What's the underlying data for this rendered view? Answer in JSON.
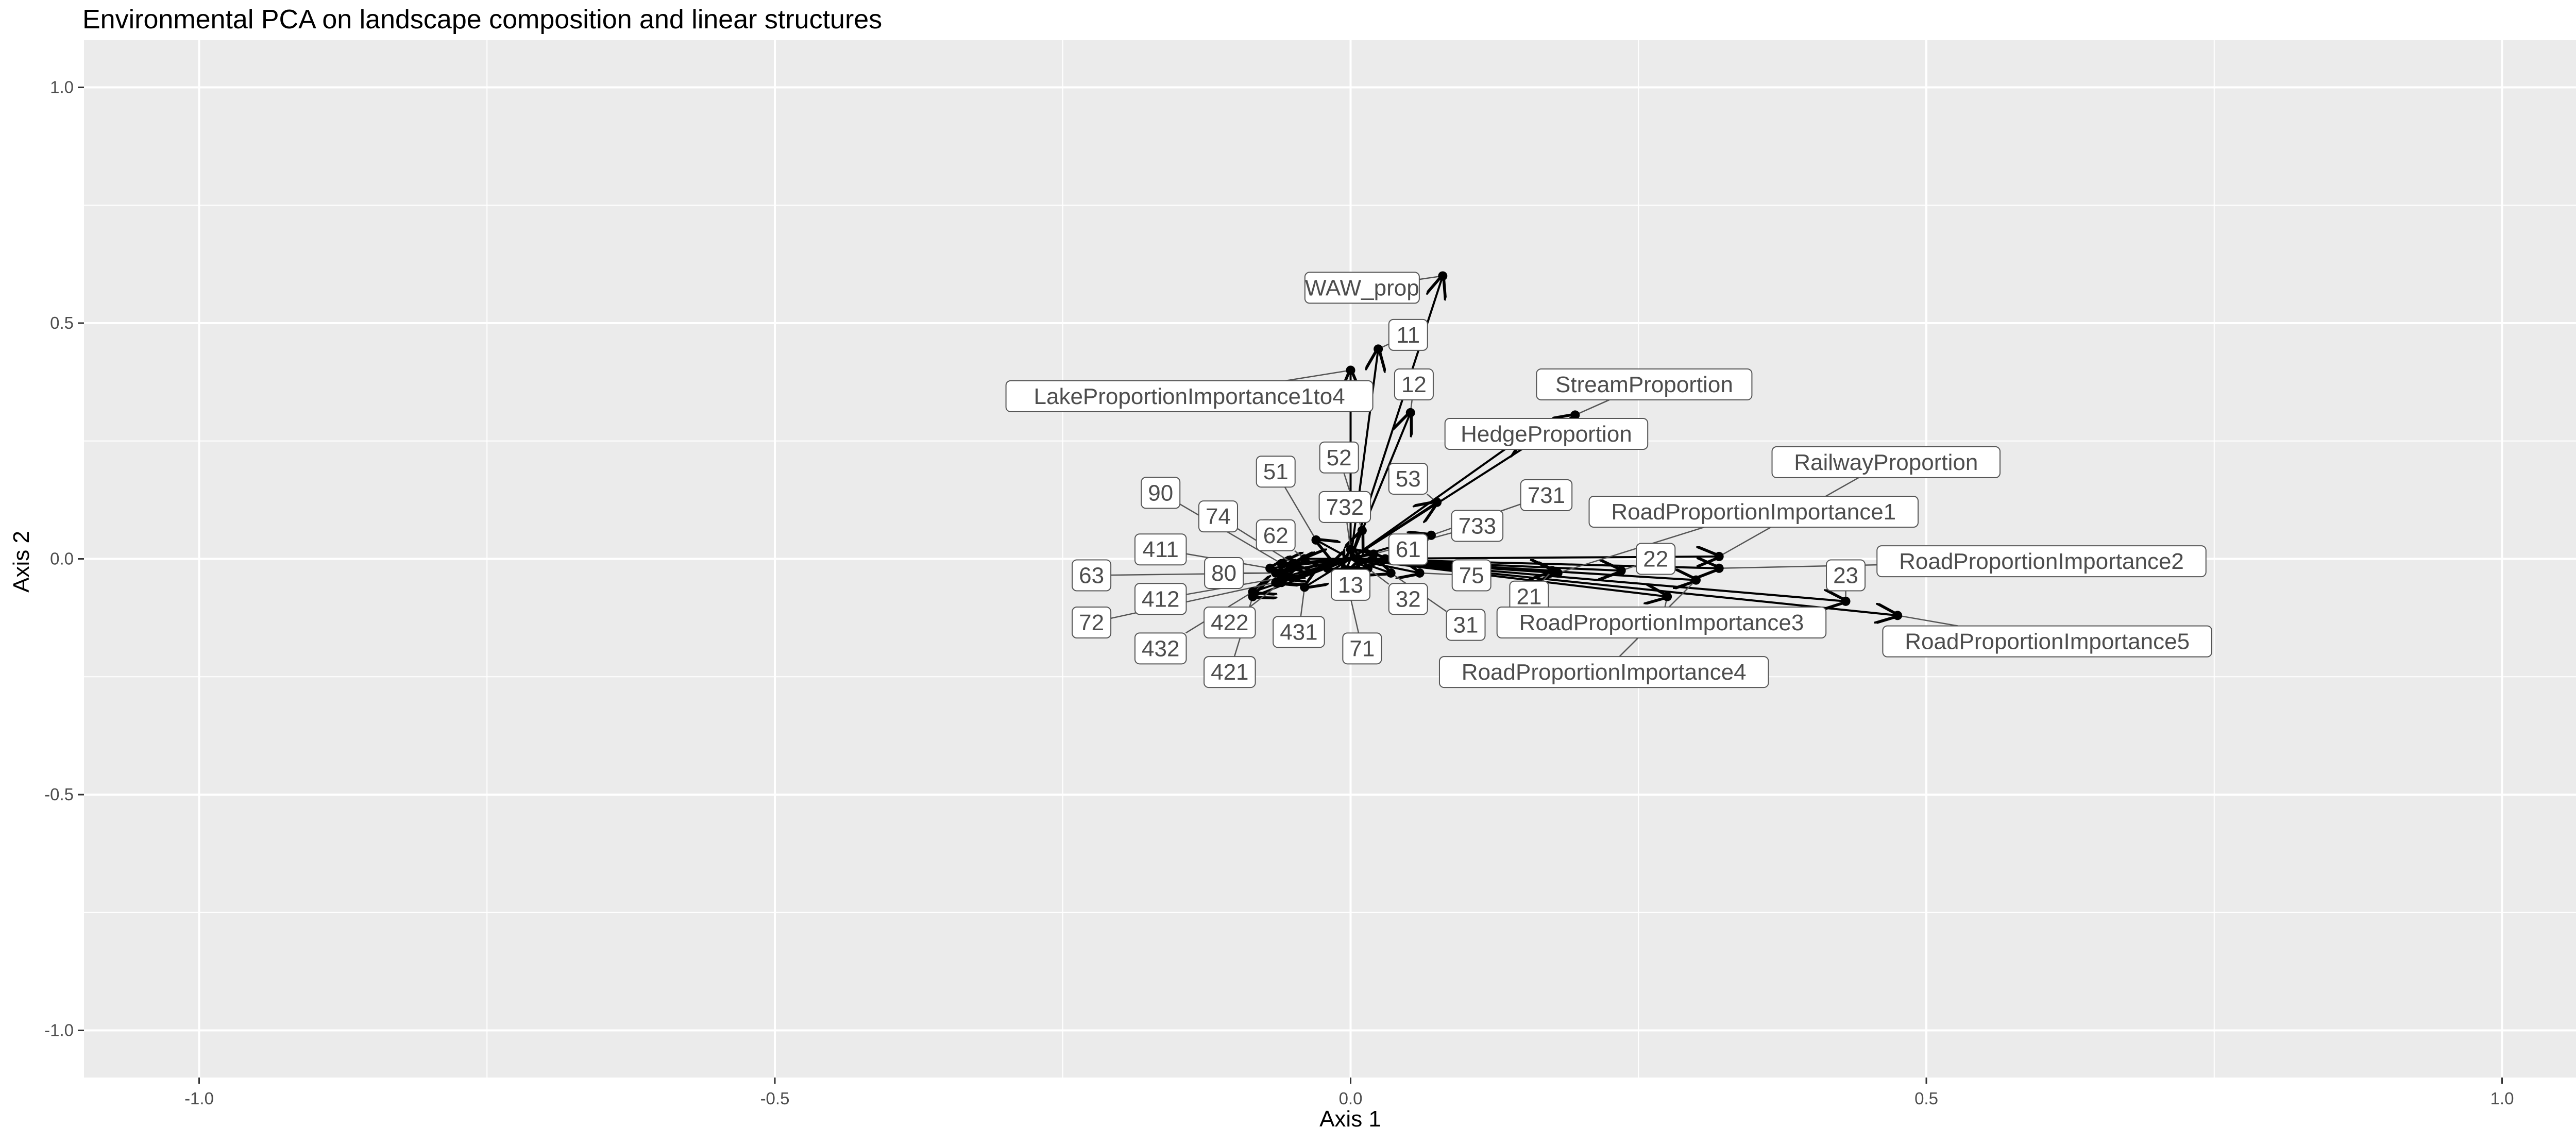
{
  "chart_data": {
    "type": "scatter",
    "title": "Environmental PCA on landscape composition and linear structures",
    "xlabel": "Axis 1",
    "ylabel": "Axis 2",
    "xlim": [
      -1.1,
      1.1
    ],
    "ylim": [
      -1.1,
      1.1
    ],
    "x_ticks": [
      -1.0,
      -0.5,
      0.0,
      0.5,
      1.0
    ],
    "x_tick_labels": [
      "-1.0",
      "-0.5",
      "0.0",
      "0.5",
      "1.0"
    ],
    "y_ticks": [
      -1.0,
      -0.5,
      0.0,
      0.5,
      1.0
    ],
    "y_tick_labels": [
      "-1.0",
      "-0.5",
      "0.0",
      "0.5",
      "1.0"
    ],
    "grid": true,
    "background": "#ebebeb",
    "grid_color": "#ffffff",
    "arrow_color": "#000000",
    "label_color": "#4d4d4d",
    "points": [
      {
        "label": "WAW_prop",
        "x": 0.08,
        "y": 0.6,
        "lx": 0.01,
        "ly": 0.575
      },
      {
        "label": "11",
        "x": 0.024,
        "y": 0.445,
        "lx": 0.05,
        "ly": 0.475
      },
      {
        "label": "LakeProportionImportance1to4",
        "x": 0.0,
        "y": 0.4,
        "lx": -0.14,
        "ly": 0.345
      },
      {
        "label": "12",
        "x": 0.052,
        "y": 0.31,
        "lx": 0.055,
        "ly": 0.37
      },
      {
        "label": "StreamProportion",
        "x": 0.195,
        "y": 0.305,
        "lx": 0.255,
        "ly": 0.37
      },
      {
        "label": "HedgeProportion",
        "x": 0.15,
        "y": 0.26,
        "lx": 0.17,
        "ly": 0.265
      },
      {
        "label": "RailwayProportion",
        "x": 0.32,
        "y": 0.005,
        "lx": 0.465,
        "ly": 0.205
      },
      {
        "label": "52",
        "x": 0.01,
        "y": 0.06,
        "lx": -0.01,
        "ly": 0.215
      },
      {
        "label": "51",
        "x": -0.03,
        "y": 0.04,
        "lx": -0.065,
        "ly": 0.185
      },
      {
        "label": "53",
        "x": 0.075,
        "y": 0.12,
        "lx": 0.05,
        "ly": 0.17
      },
      {
        "label": "90",
        "x": -0.06,
        "y": -0.01,
        "lx": -0.165,
        "ly": 0.14
      },
      {
        "label": "731",
        "x": 0.07,
        "y": 0.05,
        "lx": 0.17,
        "ly": 0.135
      },
      {
        "label": "RoadProportionImportance1",
        "x": 0.18,
        "y": -0.03,
        "lx": 0.35,
        "ly": 0.1
      },
      {
        "label": "74",
        "x": -0.05,
        "y": -0.01,
        "lx": -0.115,
        "ly": 0.09
      },
      {
        "label": "732",
        "x": 0.0,
        "y": 0.02,
        "lx": -0.005,
        "ly": 0.11
      },
      {
        "label": "733",
        "x": 0.02,
        "y": 0.01,
        "lx": 0.11,
        "ly": 0.07
      },
      {
        "label": "62",
        "x": -0.04,
        "y": 0.0,
        "lx": -0.065,
        "ly": 0.05
      },
      {
        "label": "411",
        "x": -0.07,
        "y": -0.02,
        "lx": -0.165,
        "ly": 0.02
      },
      {
        "label": "61",
        "x": 0.03,
        "y": 0.0,
        "lx": 0.05,
        "ly": 0.02
      },
      {
        "label": "22",
        "x": 0.235,
        "y": -0.025,
        "lx": 0.265,
        "ly": 0.0
      },
      {
        "label": "RoadProportionImportance2",
        "x": 0.32,
        "y": -0.02,
        "lx": 0.6,
        "ly": -0.005
      },
      {
        "label": "63",
        "x": -0.065,
        "y": -0.03,
        "lx": -0.225,
        "ly": -0.035
      },
      {
        "label": "80",
        "x": -0.06,
        "y": -0.03,
        "lx": -0.11,
        "ly": -0.03
      },
      {
        "label": "75",
        "x": 0.06,
        "y": -0.03,
        "lx": 0.105,
        "ly": -0.035
      },
      {
        "label": "23",
        "x": 0.43,
        "y": -0.09,
        "lx": 0.43,
        "ly": -0.035
      },
      {
        "label": "13",
        "x": -0.02,
        "y": -0.02,
        "lx": 0.0,
        "ly": -0.055
      },
      {
        "label": "412",
        "x": -0.06,
        "y": -0.04,
        "lx": -0.165,
        "ly": -0.085
      },
      {
        "label": "21",
        "x": 0.175,
        "y": -0.025,
        "lx": 0.155,
        "ly": -0.08
      },
      {
        "label": "32",
        "x": 0.015,
        "y": -0.02,
        "lx": 0.05,
        "ly": -0.085
      },
      {
        "label": "72",
        "x": -0.065,
        "y": -0.05,
        "lx": -0.225,
        "ly": -0.135
      },
      {
        "label": "422",
        "x": -0.06,
        "y": -0.05,
        "lx": -0.105,
        "ly": -0.135
      },
      {
        "label": "RoadProportionImportance3",
        "x": 0.275,
        "y": -0.08,
        "lx": 0.27,
        "ly": -0.135
      },
      {
        "label": "31",
        "x": 0.035,
        "y": -0.03,
        "lx": 0.1,
        "ly": -0.14
      },
      {
        "label": "431",
        "x": -0.04,
        "y": -0.06,
        "lx": -0.045,
        "ly": -0.155
      },
      {
        "label": "RoadProportionImportance5",
        "x": 0.475,
        "y": -0.12,
        "lx": 0.605,
        "ly": -0.175
      },
      {
        "label": "432",
        "x": -0.085,
        "y": -0.07,
        "lx": -0.165,
        "ly": -0.19
      },
      {
        "label": "71",
        "x": -0.005,
        "y": -0.03,
        "lx": 0.01,
        "ly": -0.19
      },
      {
        "label": "421",
        "x": -0.085,
        "y": -0.08,
        "lx": -0.105,
        "ly": -0.24
      },
      {
        "label": "RoadProportionImportance4",
        "x": 0.3,
        "y": -0.045,
        "lx": 0.22,
        "ly": -0.24
      }
    ]
  }
}
